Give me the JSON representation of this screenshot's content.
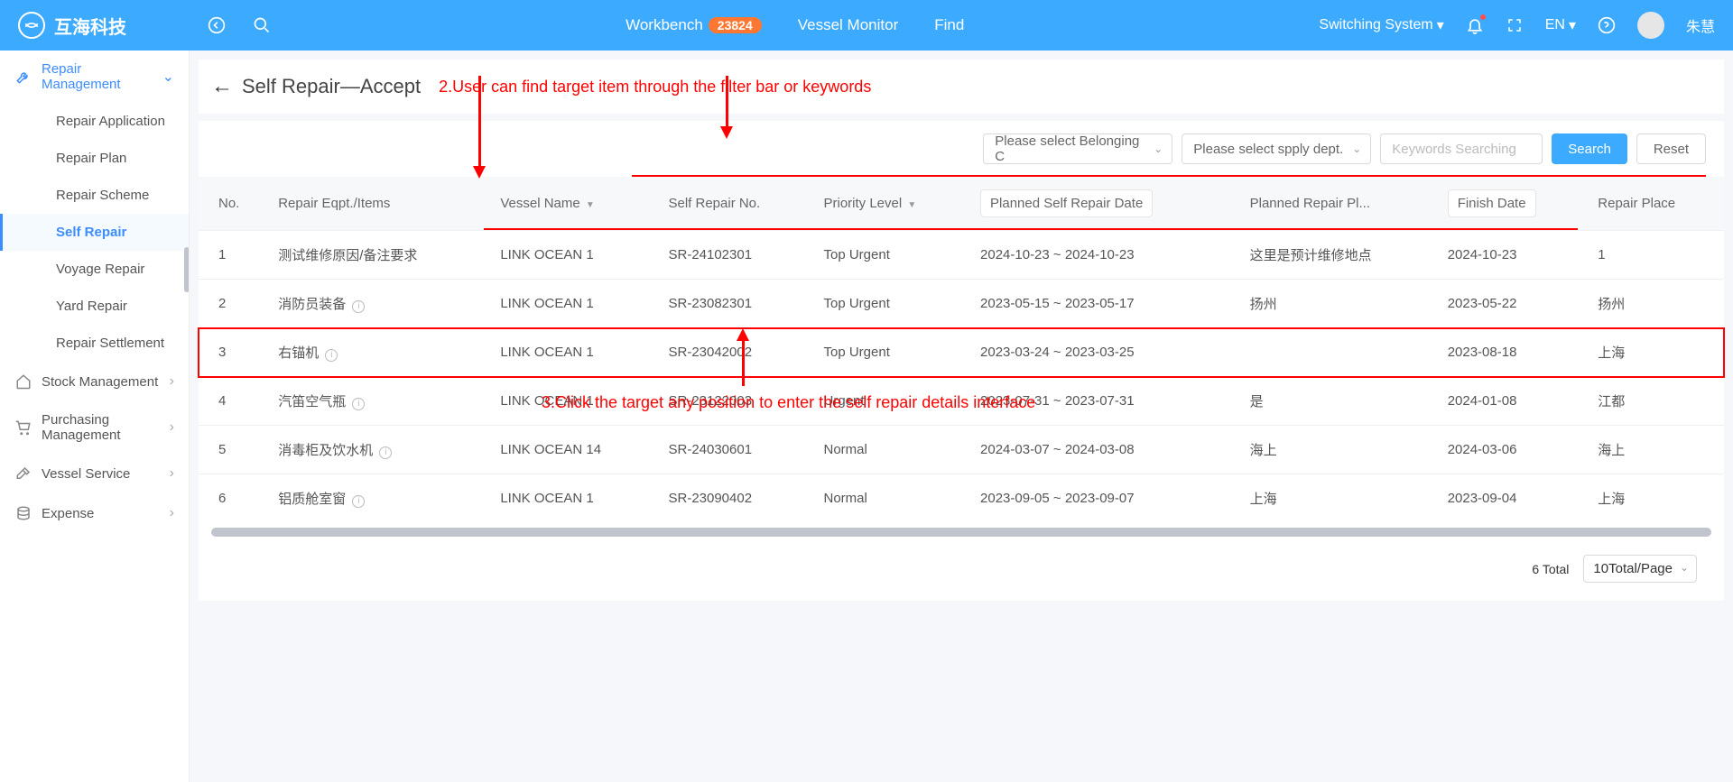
{
  "brand": "互海科技",
  "topnav": {
    "workbench": "Workbench",
    "badge": "23824",
    "vessel_monitor": "Vessel Monitor",
    "find": "Find"
  },
  "topright": {
    "switching": "Switching System",
    "lang": "EN",
    "user": "朱慧"
  },
  "sidebar": {
    "repair_mgmt": "Repair Management",
    "items": {
      "repair_application": "Repair Application",
      "repair_plan": "Repair Plan",
      "repair_scheme": "Repair Scheme",
      "self_repair": "Self Repair",
      "voyage_repair": "Voyage Repair",
      "yard_repair": "Yard Repair",
      "repair_settlement": "Repair Settlement"
    },
    "stock_mgmt": "Stock Management",
    "purchasing_mgmt": "Purchasing Management",
    "vessel_service": "Vessel Service",
    "expense": "Expense"
  },
  "page_title": "Self Repair—Accept",
  "anno2": "2.User can find target item through the filter bar or keywords",
  "anno3": "3.Click the target any position to enter the self repair details interface",
  "filters": {
    "belonging": "Please select Belonging C",
    "dept": "Please select spply dept.",
    "keywords_ph": "Keywords Searching",
    "search_btn": "Search",
    "reset_btn": "Reset"
  },
  "columns": {
    "no": "No.",
    "eqpt": "Repair Eqpt./Items",
    "vessel": "Vessel Name",
    "srno": "Self Repair No.",
    "priority": "Priority Level",
    "planned_date": "Planned Self Repair Date",
    "planned_place": "Planned Repair Pl...",
    "finish": "Finish Date",
    "place": "Repair Place"
  },
  "rows": [
    {
      "no": "1",
      "eqpt": "测试维修原因/备注要求",
      "info": false,
      "vessel": "LINK OCEAN 1",
      "sr": "SR-24102301",
      "pri": "Top Urgent",
      "pdate": "2024-10-23 ~ 2024-10-23",
      "pplace": "这里是预计维修地点",
      "finish": "2024-10-23",
      "place": "1"
    },
    {
      "no": "2",
      "eqpt": "消防员装备",
      "info": true,
      "vessel": "LINK OCEAN 1",
      "sr": "SR-23082301",
      "pri": "Top Urgent",
      "pdate": "2023-05-15 ~ 2023-05-17",
      "pplace": "扬州",
      "pplace_muted": true,
      "finish": "2023-05-22",
      "place": "扬州"
    },
    {
      "no": "3",
      "eqpt": "右锚机",
      "info": true,
      "vessel": "LINK OCEAN 1",
      "sr": "SR-23042002",
      "pri": "Top Urgent",
      "pdate": "2023-03-24 ~ 2023-03-25",
      "pplace": "",
      "finish": "2023-08-18",
      "place": "上海",
      "hl": true
    },
    {
      "no": "4",
      "eqpt": "汽笛空气瓶",
      "info": true,
      "vessel": "LINK OCEAN 1",
      "sr": "SR-23122003",
      "pri": "Urgent",
      "pdate": "2023-07-31 ~ 2023-07-31",
      "pplace": "是",
      "finish": "2024-01-08",
      "place": "江都"
    },
    {
      "no": "5",
      "eqpt": "消毒柜及饮水机",
      "info": true,
      "vessel": "LINK OCEAN 14",
      "sr": "SR-24030601",
      "pri": "Normal",
      "pdate": "2024-03-07 ~ 2024-03-08",
      "pplace": "海上",
      "finish": "2024-03-06",
      "place": "海上"
    },
    {
      "no": "6",
      "eqpt": "铝质舱室窗",
      "info": true,
      "vessel": "LINK OCEAN 1",
      "sr": "SR-23090402",
      "pri": "Normal",
      "pdate": "2023-09-05 ~ 2023-09-07",
      "pplace": "上海",
      "finish": "2023-09-04",
      "place": "上海"
    }
  ],
  "footer": {
    "total": "6 Total",
    "page_size": "10Total/Page"
  }
}
